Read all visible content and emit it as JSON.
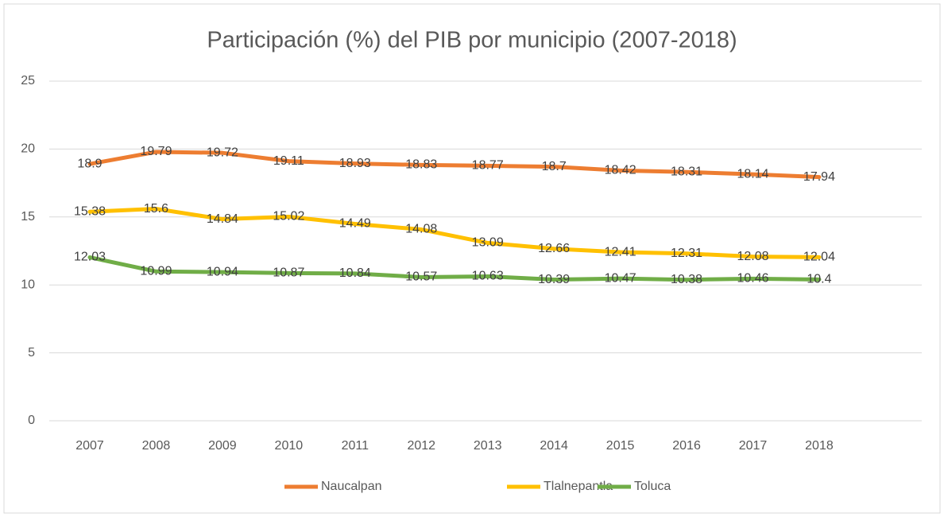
{
  "chart_data": {
    "type": "line",
    "title": "Participación (%) del PIB por municipio (2007-2018)",
    "categories": [
      "2007",
      "2008",
      "2009",
      "2010",
      "2011",
      "2012",
      "2013",
      "2014",
      "2015",
      "2016",
      "2017",
      "2018"
    ],
    "series": [
      {
        "name": "Naucalpan",
        "color": "#ED7D31",
        "values": [
          18.9,
          19.79,
          19.72,
          19.11,
          18.93,
          18.83,
          18.77,
          18.7,
          18.42,
          18.31,
          18.14,
          17.94
        ]
      },
      {
        "name": "Tlalnepantla",
        "color": "#FFC000",
        "values": [
          15.38,
          15.6,
          14.84,
          15.02,
          14.49,
          14.08,
          13.09,
          12.66,
          12.41,
          12.31,
          12.08,
          12.04
        ]
      },
      {
        "name": "Toluca",
        "color": "#70AD47",
        "values": [
          12.03,
          10.99,
          10.94,
          10.87,
          10.84,
          10.57,
          10.63,
          10.39,
          10.47,
          10.38,
          10.46,
          10.4
        ]
      }
    ],
    "ylim": [
      0,
      25
    ],
    "yticks": [
      0,
      5,
      10,
      15,
      20,
      25
    ],
    "grid": true,
    "legend": "bottom"
  }
}
